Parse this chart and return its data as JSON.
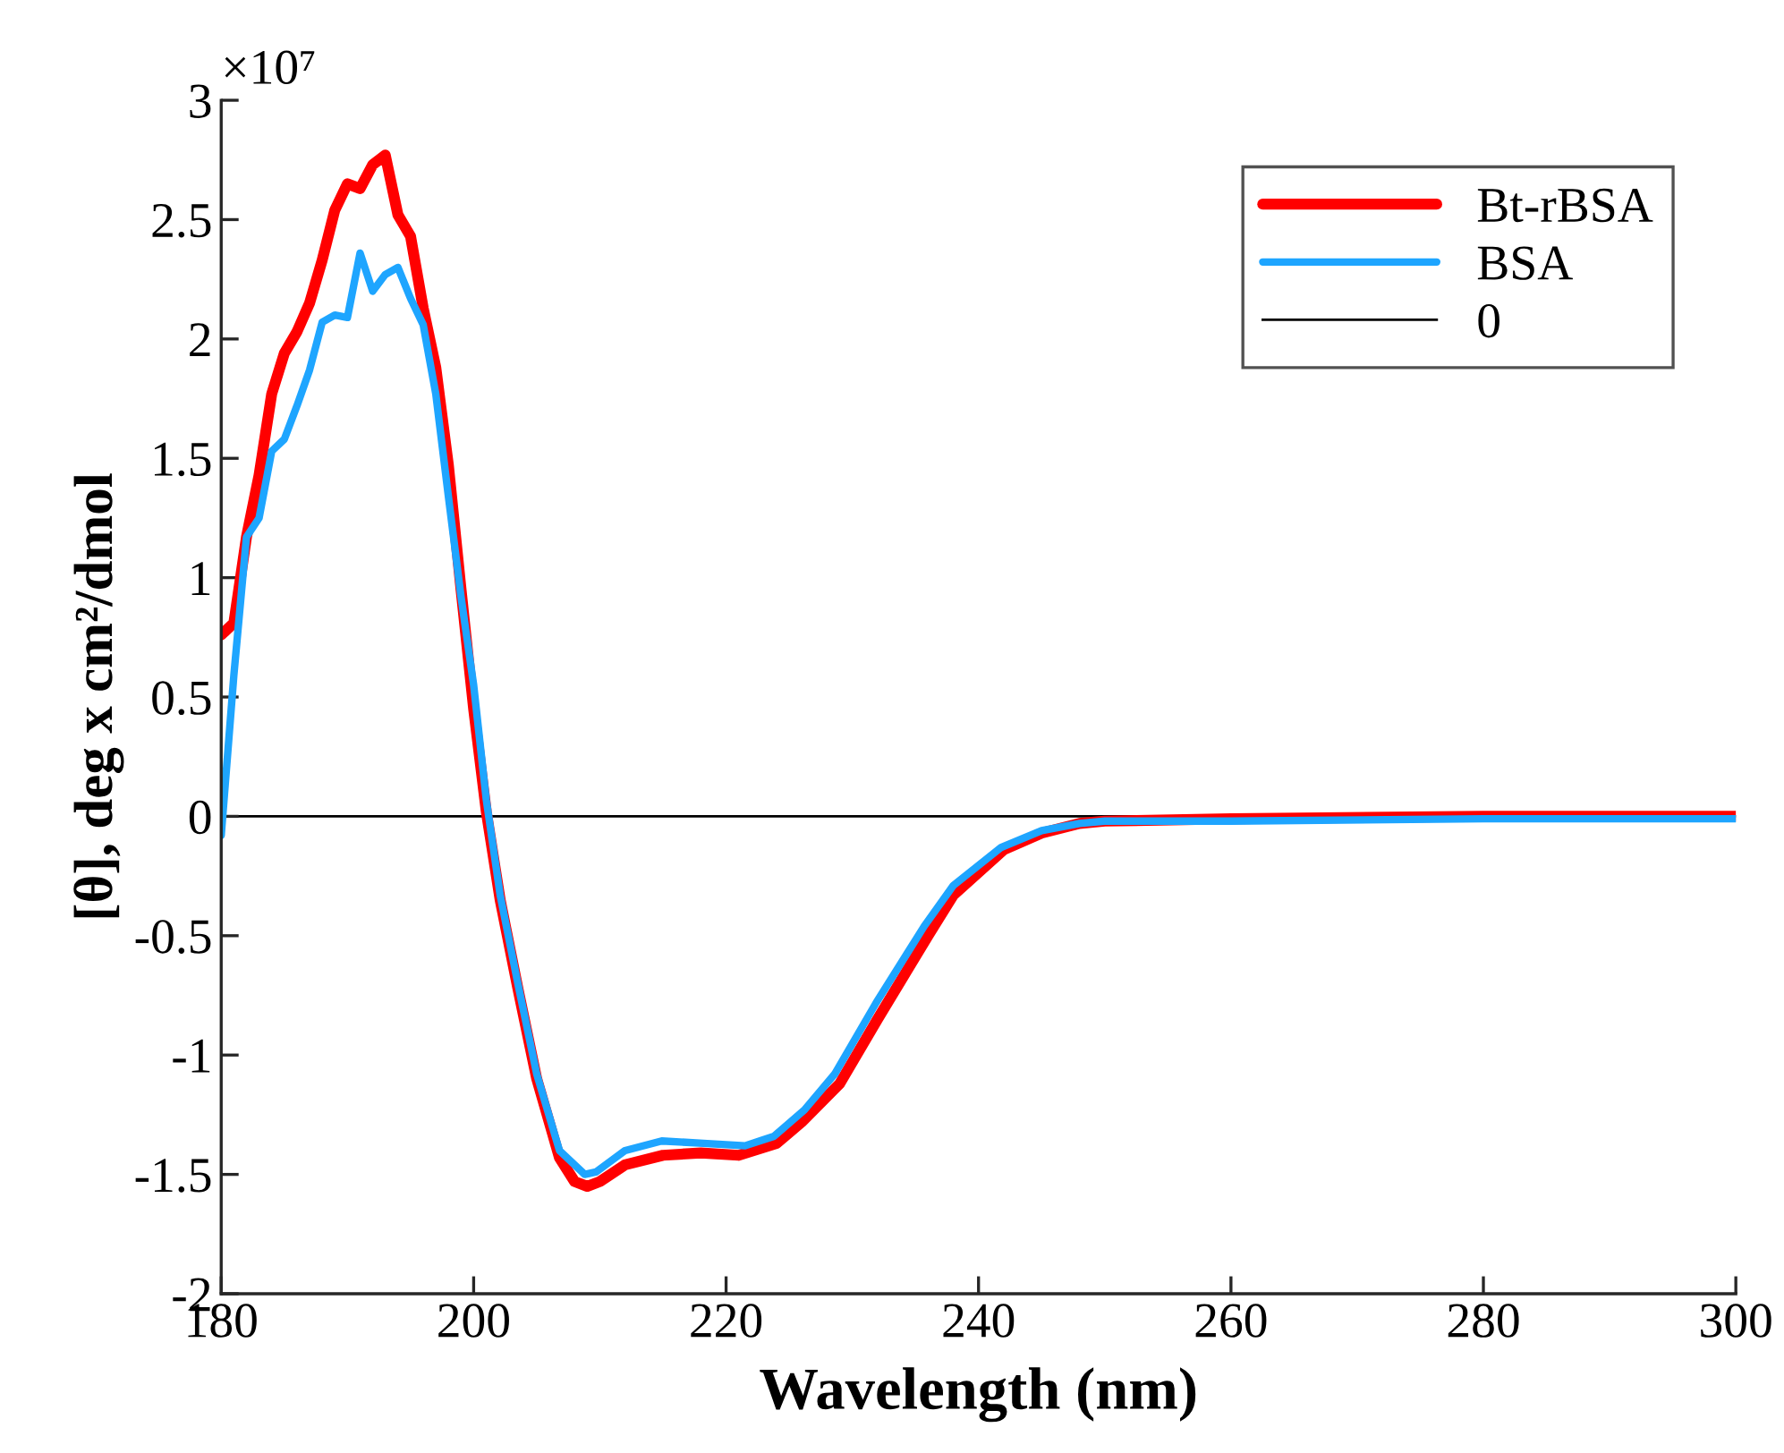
{
  "chart_data": {
    "type": "line",
    "xlabel": "Wavelength (nm)",
    "ylabel": "[θ], deg x cm²/dmol",
    "annotations": [
      "×10⁷"
    ],
    "xlim": [
      180,
      300
    ],
    "xticks": [
      180,
      200,
      220,
      240,
      260,
      280,
      300
    ],
    "ylim": [
      -2,
      3
    ],
    "yticks": [
      -2,
      -1.5,
      -1,
      -0.5,
      0,
      0.5,
      1,
      1.5,
      2,
      2.5,
      3
    ],
    "grid": false,
    "legend": "top right",
    "marker": "none",
    "line_style": "solid",
    "ref_lines": [
      {
        "axis": "y",
        "value": 0,
        "label": "0",
        "color": "#000000"
      }
    ],
    "series": [
      {
        "name": "Bt-rBSA",
        "color": "#ff0000",
        "x": [
          180,
          181,
          182,
          183,
          184,
          185,
          186,
          187,
          188,
          189,
          190,
          191,
          192,
          193,
          194,
          195,
          196,
          197,
          198,
          199,
          200,
          201,
          202.1,
          203.5,
          205,
          206.8,
          208,
          209,
          210,
          212,
          215,
          218,
          221,
          224,
          226,
          229,
          232,
          236,
          238,
          242,
          245,
          248,
          250,
          260,
          280,
          300
        ],
        "values": [
          0.76,
          0.81,
          1.17,
          1.43,
          1.77,
          1.94,
          2.03,
          2.15,
          2.33,
          2.54,
          2.65,
          2.63,
          2.73,
          2.77,
          2.52,
          2.43,
          2.13,
          1.88,
          1.47,
          0.95,
          0.45,
          0.02,
          -0.35,
          -0.72,
          -1.1,
          -1.43,
          -1.53,
          -1.55,
          -1.53,
          -1.46,
          -1.42,
          -1.41,
          -1.42,
          -1.37,
          -1.28,
          -1.12,
          -0.85,
          -0.5,
          -0.33,
          -0.14,
          -0.07,
          -0.03,
          -0.02,
          -0.01,
          0,
          0
        ]
      },
      {
        "name": "BSA",
        "color": "#1ea5ff",
        "x": [
          180,
          181,
          182,
          183,
          184,
          185,
          186,
          187,
          188,
          189,
          190,
          191,
          192,
          193,
          194,
          195,
          196,
          197,
          198,
          199,
          200,
          201,
          202.1,
          203.5,
          205,
          206.8,
          208.8,
          209.7,
          212,
          214.9,
          218.2,
          221.5,
          223.8,
          226.2,
          228.6,
          231.9,
          235.7,
          238,
          241.8,
          245,
          248,
          250,
          260,
          280,
          300
        ],
        "values": [
          -0.08,
          0.59,
          1.17,
          1.25,
          1.53,
          1.58,
          1.72,
          1.87,
          2.07,
          2.1,
          2.09,
          2.36,
          2.2,
          2.27,
          2.3,
          2.17,
          2.06,
          1.77,
          1.34,
          0.92,
          0.55,
          0.07,
          -0.33,
          -0.7,
          -1.08,
          -1.4,
          -1.5,
          -1.49,
          -1.4,
          -1.36,
          -1.37,
          -1.38,
          -1.34,
          -1.23,
          -1.08,
          -0.78,
          -0.46,
          -0.29,
          -0.13,
          -0.06,
          -0.03,
          -0.02,
          -0.02,
          -0.01,
          -0.01
        ]
      }
    ]
  }
}
